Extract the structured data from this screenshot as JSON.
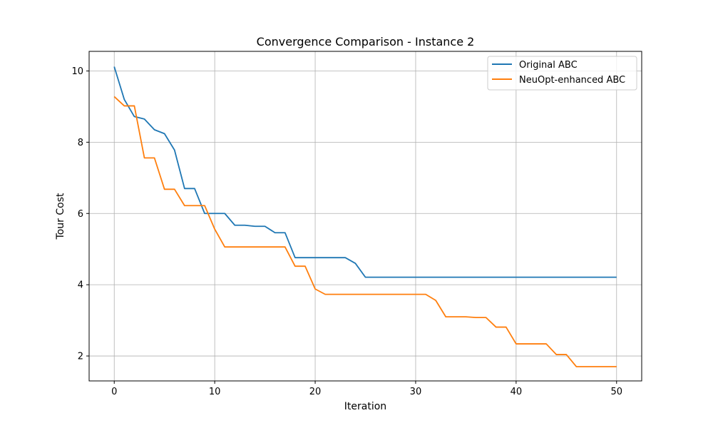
{
  "chart_data": {
    "type": "line",
    "title": "Convergence Comparison - Instance 2",
    "xlabel": "Iteration",
    "ylabel": "Tour Cost",
    "xlim": [
      -2.5,
      52.5
    ],
    "ylim": [
      1.3,
      10.55
    ],
    "xticks": [
      0,
      10,
      20,
      30,
      40,
      50
    ],
    "yticks": [
      2,
      4,
      6,
      8,
      10
    ],
    "grid": true,
    "legend_position": "top-right",
    "series": [
      {
        "name": "Original ABC",
        "color": "#1f77b4",
        "x": [
          0,
          1,
          2,
          3,
          4,
          5,
          6,
          7,
          8,
          9,
          10,
          11,
          12,
          13,
          14,
          15,
          16,
          17,
          18,
          19,
          20,
          21,
          22,
          23,
          24,
          25,
          26,
          27,
          28,
          29,
          30,
          31,
          32,
          33,
          34,
          35,
          36,
          37,
          38,
          39,
          40,
          41,
          42,
          43,
          44,
          45,
          46,
          47,
          48,
          49,
          50
        ],
        "y": [
          10.12,
          9.2,
          8.72,
          8.65,
          8.35,
          8.24,
          7.78,
          6.7,
          6.7,
          6.0,
          6.0,
          6.0,
          5.67,
          5.67,
          5.64,
          5.64,
          5.46,
          5.46,
          4.76,
          4.76,
          4.76,
          4.76,
          4.76,
          4.76,
          4.6,
          4.21,
          4.21,
          4.21,
          4.21,
          4.21,
          4.21,
          4.21,
          4.21,
          4.21,
          4.21,
          4.21,
          4.21,
          4.21,
          4.21,
          4.21,
          4.21,
          4.21,
          4.21,
          4.21,
          4.21,
          4.21,
          4.21,
          4.21,
          4.21,
          4.21,
          4.21
        ]
      },
      {
        "name": "NeuOpt-enhanced ABC",
        "color": "#ff7f0e",
        "x": [
          0,
          1,
          2,
          3,
          4,
          5,
          6,
          7,
          8,
          9,
          10,
          11,
          12,
          13,
          14,
          15,
          16,
          17,
          18,
          19,
          20,
          21,
          22,
          23,
          24,
          25,
          26,
          27,
          28,
          29,
          30,
          31,
          32,
          33,
          34,
          35,
          36,
          37,
          38,
          39,
          40,
          41,
          42,
          43,
          44,
          45,
          46,
          47,
          48,
          49,
          50
        ],
        "y": [
          9.28,
          9.02,
          9.02,
          7.56,
          7.56,
          6.68,
          6.68,
          6.22,
          6.22,
          6.22,
          5.56,
          5.06,
          5.06,
          5.06,
          5.06,
          5.06,
          5.06,
          5.06,
          4.52,
          4.52,
          3.88,
          3.73,
          3.73,
          3.73,
          3.73,
          3.73,
          3.73,
          3.73,
          3.73,
          3.73,
          3.73,
          3.73,
          3.56,
          3.1,
          3.1,
          3.1,
          3.08,
          3.08,
          2.81,
          2.81,
          2.34,
          2.34,
          2.34,
          2.34,
          2.04,
          2.04,
          1.7,
          1.7,
          1.7,
          1.7,
          1.7
        ]
      }
    ]
  }
}
